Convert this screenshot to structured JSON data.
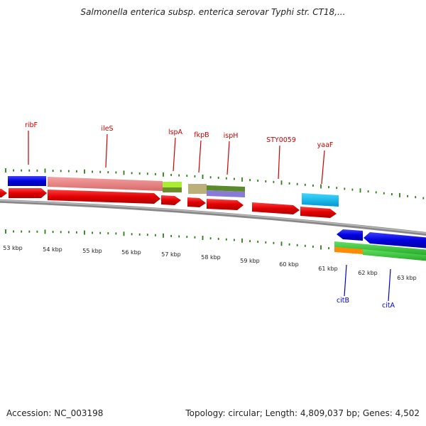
{
  "title": "Salmonella enterica subsp. enterica serovar Typhi str. CT18,...",
  "footer": {
    "accession": "Accession: NC_003198",
    "summary": "Topology: circular; Length: 4,809,037 bp; Genes: 4,502"
  },
  "colors": {
    "forward_label": "#cc0000",
    "reverse_label": "#0000cc",
    "tick": "#2e7d1a",
    "backbone": "#888888"
  },
  "kbp_labels": [
    "53 kbp",
    "54 kbp",
    "55 kbp",
    "56 kbp",
    "57 kbp",
    "58 kbp",
    "59 kbp",
    "60 kbp",
    "61 kbp",
    "62 kbp",
    "63 kbp"
  ],
  "gene_labels_top": [
    "ribF",
    "ileS",
    "lspA",
    "fkpB",
    "ispH",
    "STY0059",
    "yaaF"
  ],
  "gene_labels_bottom": [
    "citB",
    "citA"
  ]
}
